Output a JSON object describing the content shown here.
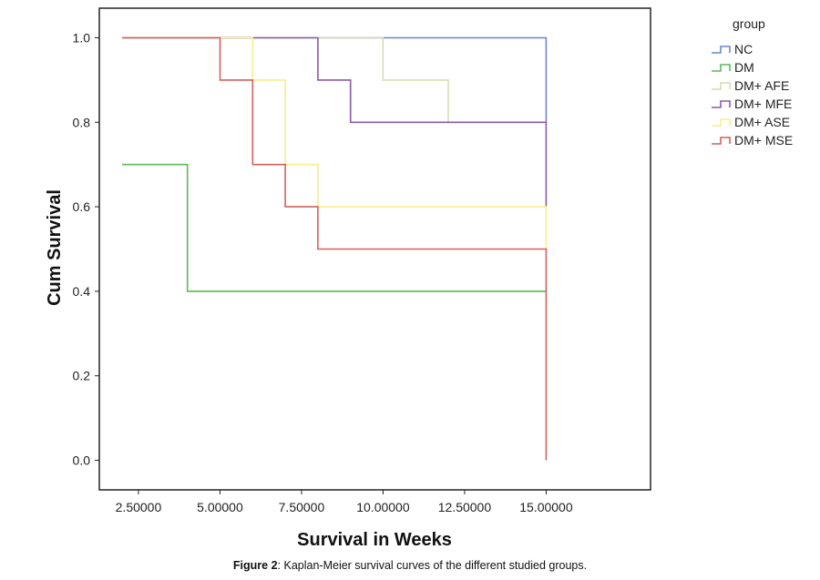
{
  "chart_data": {
    "type": "line",
    "title": "",
    "xlabel": "Survival in Weeks",
    "ylabel": "Cum Survival",
    "xlim": [
      1.3,
      18.2
    ],
    "ylim": [
      -0.07,
      1.07
    ],
    "x_ticks": [
      2.5,
      5.0,
      7.5,
      10.0,
      12.5,
      15.0
    ],
    "x_tick_labels": [
      "2.50000",
      "5.00000",
      "7.50000",
      "10.00000",
      "12.50000",
      "15.00000"
    ],
    "y_ticks": [
      0.0,
      0.2,
      0.4,
      0.6,
      0.8,
      1.0
    ],
    "y_tick_labels": [
      "0.0",
      "0.2",
      "0.4",
      "0.6",
      "0.8",
      "1.0"
    ],
    "grid": false,
    "legend_title": "group",
    "legend_position": "right",
    "series": [
      {
        "name": "NC",
        "color": "#6f86c6",
        "points": [
          [
            2,
            1.0
          ],
          [
            15,
            1.0
          ],
          [
            15,
            0.8
          ]
        ]
      },
      {
        "name": "DM",
        "color": "#5cb85c",
        "points": [
          [
            2,
            0.7
          ],
          [
            4,
            0.7
          ],
          [
            4,
            0.4
          ],
          [
            15,
            0.4
          ]
        ]
      },
      {
        "name": "DM+ AFE",
        "color": "#d9dbb2",
        "points": [
          [
            2,
            1.0
          ],
          [
            10,
            1.0
          ],
          [
            10,
            0.9
          ],
          [
            12,
            0.9
          ],
          [
            12,
            0.8
          ],
          [
            15,
            0.8
          ]
        ]
      },
      {
        "name": "DM+ MFE",
        "color": "#8a5aa8",
        "points": [
          [
            2,
            1.0
          ],
          [
            8,
            1.0
          ],
          [
            8,
            0.9
          ],
          [
            9,
            0.9
          ],
          [
            9,
            0.8
          ],
          [
            15,
            0.8
          ],
          [
            15,
            0.6
          ]
        ]
      },
      {
        "name": "DM+ ASE",
        "color": "#f6ef8a",
        "points": [
          [
            2,
            1.0
          ],
          [
            6,
            1.0
          ],
          [
            6,
            0.9
          ],
          [
            7,
            0.9
          ],
          [
            7,
            0.7
          ],
          [
            8,
            0.7
          ],
          [
            8,
            0.6
          ],
          [
            15,
            0.6
          ],
          [
            15,
            0.5
          ]
        ]
      },
      {
        "name": "DM+ MSE",
        "color": "#d65f5f",
        "points": [
          [
            2,
            1.0
          ],
          [
            5,
            1.0
          ],
          [
            5,
            0.9
          ],
          [
            6,
            0.9
          ],
          [
            6,
            0.7
          ],
          [
            7,
            0.7
          ],
          [
            7,
            0.6
          ],
          [
            8,
            0.6
          ],
          [
            8,
            0.5
          ],
          [
            15,
            0.5
          ],
          [
            15,
            0.0
          ]
        ]
      }
    ]
  },
  "caption": {
    "label": "Figure 2",
    "text": ": Kaplan-Meier survival curves of the different studied groups."
  }
}
